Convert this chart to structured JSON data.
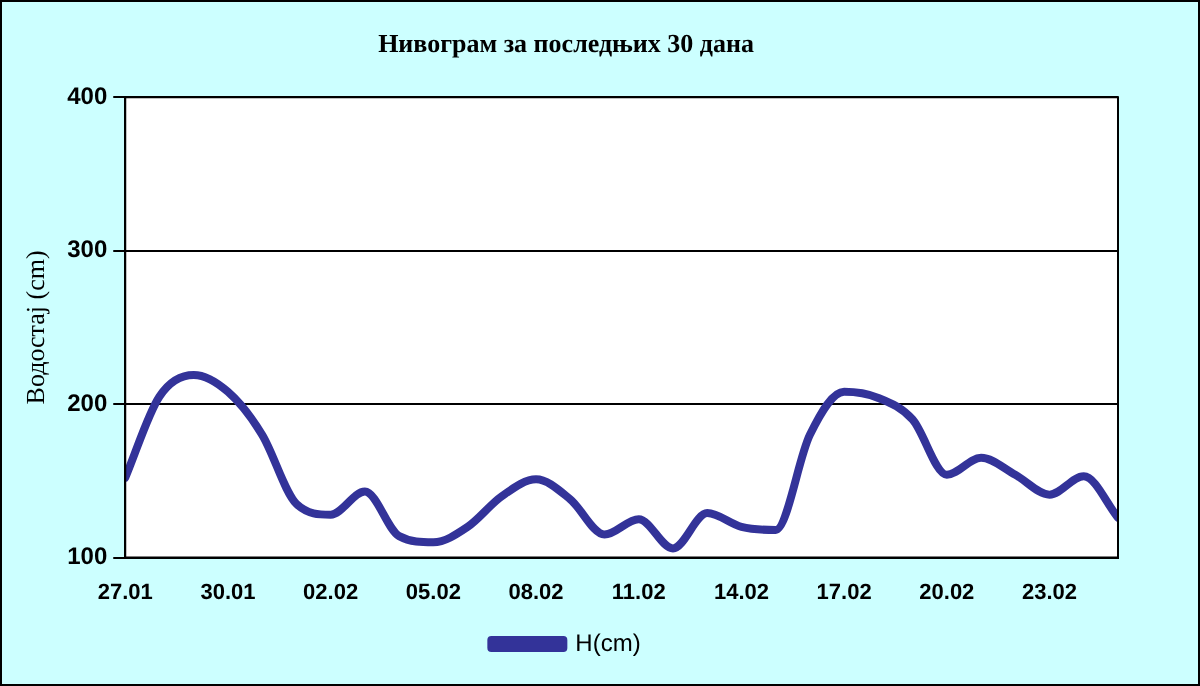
{
  "chart_data": {
    "type": "line",
    "title": "Нивограм за последњих 30 дана",
    "ylabel": "Водостај (cm)",
    "x": [
      "--01-27",
      "--01-28",
      "--01-29",
      "--01-30",
      "--01-31",
      "--02-01",
      "--02-02",
      "--02-03",
      "--02-04",
      "--02-05",
      "--02-06",
      "--02-07",
      "--02-08",
      "--02-09",
      "--02-10",
      "--02-11",
      "--02-12",
      "--02-13",
      "--02-14",
      "--02-15",
      "--02-16",
      "--02-17",
      "--02-18",
      "--02-19",
      "--02-20",
      "--02-21",
      "--02-22",
      "--02-23",
      "--02-24",
      "--02-25"
    ],
    "series": [
      {
        "name": "H(cm)",
        "color": "#333399",
        "values": [
          152,
          205,
          219,
          208,
          180,
          135,
          128,
          143,
          114,
          110,
          120,
          140,
          151,
          138,
          115,
          125,
          106,
          129,
          120,
          118,
          180,
          208,
          204,
          190,
          154,
          165,
          154,
          141,
          153,
          126
        ]
      }
    ],
    "xlim": [
      "--01-27",
      "--02-25"
    ],
    "xticks": [
      {
        "value": "--01-27",
        "label": "27.01"
      },
      {
        "value": "--01-30",
        "label": "30.01"
      },
      {
        "value": "--02-02",
        "label": "02.02"
      },
      {
        "value": "--02-05",
        "label": "05.02"
      },
      {
        "value": "--02-08",
        "label": "08.02"
      },
      {
        "value": "--02-11",
        "label": "11.02"
      },
      {
        "value": "--02-14",
        "label": "14.02"
      },
      {
        "value": "--02-17",
        "label": "17.02"
      },
      {
        "value": "--02-20",
        "label": "20.02"
      },
      {
        "value": "--02-23",
        "label": "23.02"
      }
    ],
    "ylim": [
      100,
      400
    ],
    "yticks": [
      100,
      200,
      300,
      400
    ],
    "grid": "y",
    "legend": "bottom",
    "marker": "none",
    "line_style": "solid"
  }
}
